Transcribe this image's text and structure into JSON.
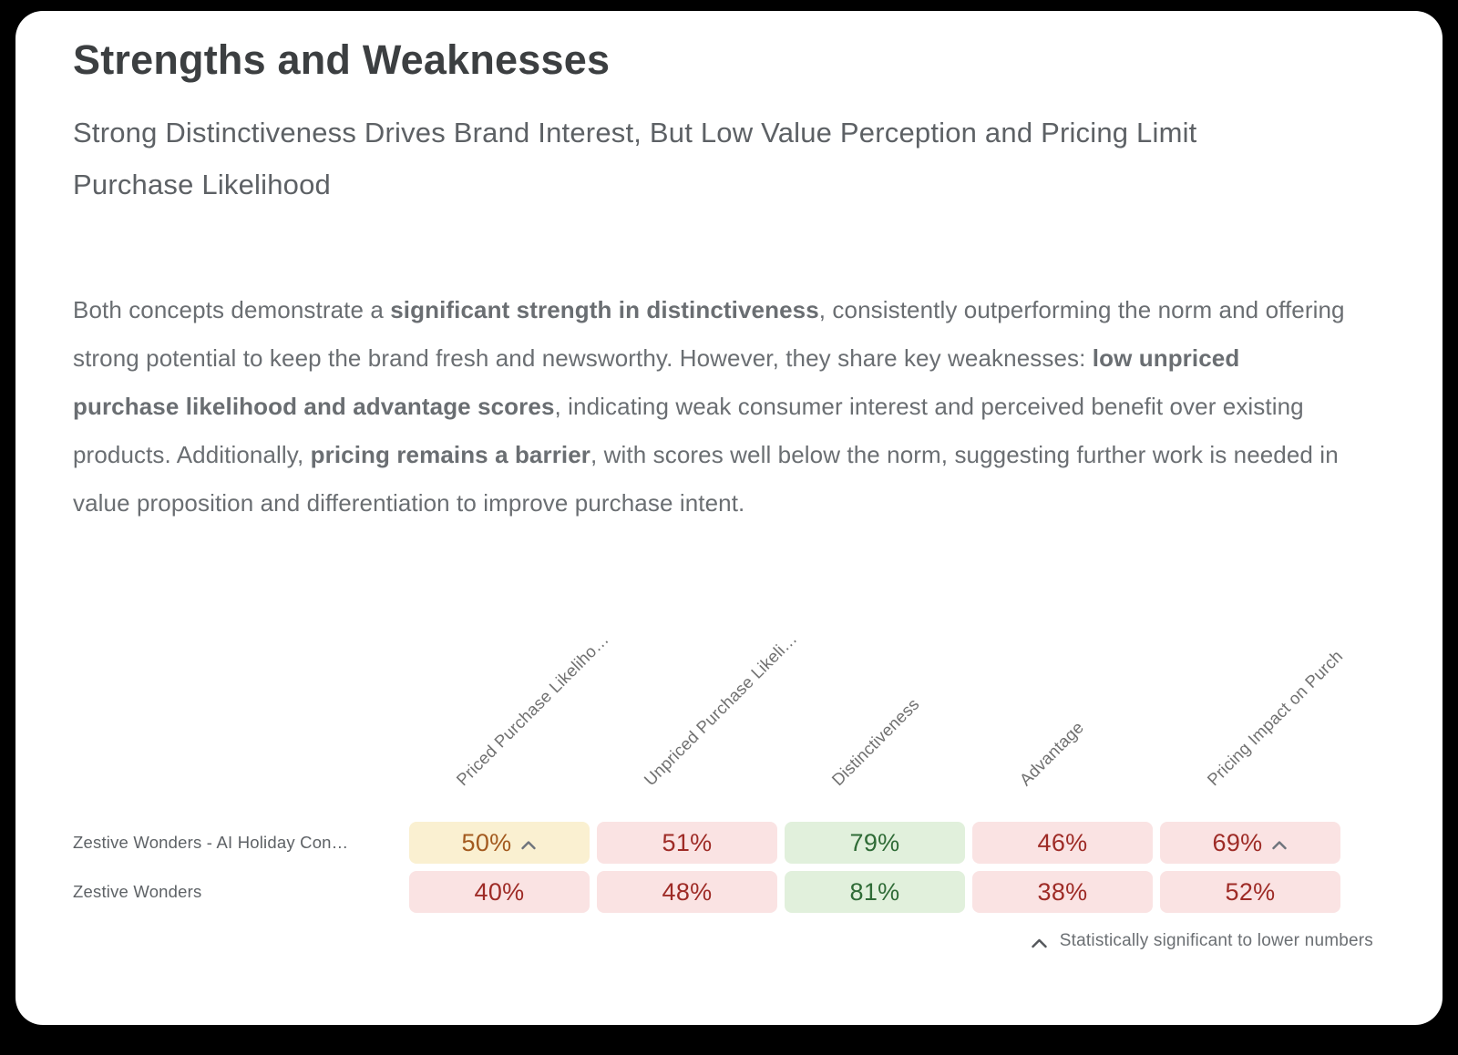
{
  "colors": {
    "page_bg": "#000000",
    "card_bg": "#ffffff",
    "title_text": "#3c3f41",
    "subtitle_text": "#5d6165",
    "body_text": "#6a6e72",
    "column_header_text": "#707070",
    "row_label_text": "#5e6266",
    "cell_yellow_bg": "#faf0d1",
    "cell_yellow_text": "#a35a1f",
    "cell_red_bg": "#fae3e3",
    "cell_red_text": "#9e2b26",
    "cell_green_bg": "#e1f0dc",
    "cell_green_text": "#2f6b36",
    "caret": "#6e747c",
    "footnote_caret": "#54575b",
    "footnote_text": "#6b6f73"
  },
  "header": {
    "title": "Strengths and Weaknesses",
    "subtitle_lines": [
      "Strong Distinctiveness Drives Brand Interest, But Low Value Perception and Pricing Limit",
      "Purchase Likelihood"
    ]
  },
  "summary": {
    "segments": [
      {
        "bold": false,
        "text": "Both concepts demonstrate a "
      },
      {
        "bold": true,
        "text": "significant strength in distinctiveness"
      },
      {
        "bold": false,
        "text": ", consistently outperforming the norm and offering strong potential to keep the brand fresh and newsworthy. However, they share key weaknesses: "
      },
      {
        "bold": true,
        "text": "low unpriced purchase likelihood and advantage scores"
      },
      {
        "bold": false,
        "text": ", indicating weak consumer interest and perceived benefit over existing products. Additionally, "
      },
      {
        "bold": true,
        "text": "pricing remains a barrier"
      },
      {
        "bold": false,
        "text": ", with scores well below the norm, suggesting further work is needed in value proposition and differentiation to improve purchase intent."
      }
    ]
  },
  "table": {
    "columns": [
      {
        "label": "Priced Purchase Likeliho…"
      },
      {
        "label": "Unpriced Purchase Likeli…"
      },
      {
        "label": "Distinctiveness"
      },
      {
        "label": "Advantage"
      },
      {
        "label": "Pricing Impact on Purch"
      }
    ],
    "rows": [
      {
        "label": "Zestive Wonders - AI Holiday Con…",
        "cells": [
          {
            "value": "50%",
            "tone": "yellow",
            "significant": true
          },
          {
            "value": "51%",
            "tone": "red",
            "significant": false
          },
          {
            "value": "79%",
            "tone": "green",
            "significant": false
          },
          {
            "value": "46%",
            "tone": "red",
            "significant": false
          },
          {
            "value": "69%",
            "tone": "red",
            "significant": true
          }
        ]
      },
      {
        "label": "Zestive Wonders",
        "cells": [
          {
            "value": "40%",
            "tone": "red",
            "significant": false
          },
          {
            "value": "48%",
            "tone": "red",
            "significant": false
          },
          {
            "value": "81%",
            "tone": "green",
            "significant": false
          },
          {
            "value": "38%",
            "tone": "red",
            "significant": false
          },
          {
            "value": "52%",
            "tone": "red",
            "significant": false
          }
        ]
      }
    ],
    "footnote": "Statistically significant to lower numbers"
  }
}
